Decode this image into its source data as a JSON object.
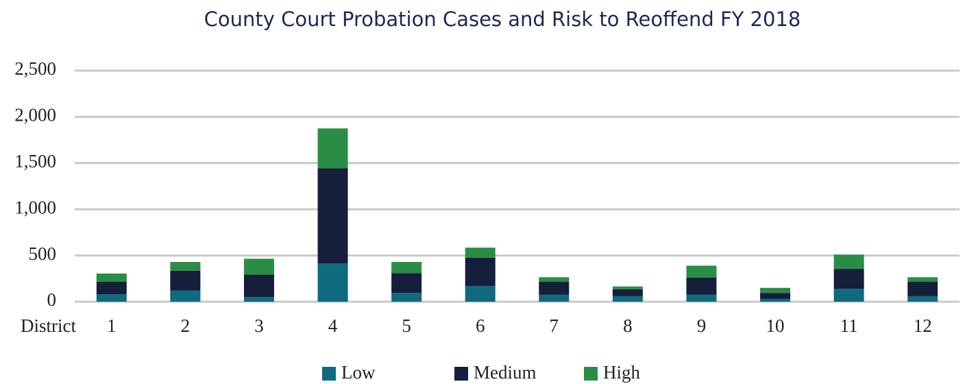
{
  "chart_data": {
    "type": "stacked_bar",
    "title": "County Court Probation Cases and Risk to Reoffend FY 2018",
    "x_label": "District",
    "categories": [
      "1",
      "2",
      "3",
      "4",
      "5",
      "6",
      "7",
      "8",
      "9",
      "10",
      "11",
      "12"
    ],
    "series": [
      {
        "name": "Low",
        "color": "#0f6a80",
        "values": [
          80,
          120,
          50,
          415,
          95,
          170,
          75,
          60,
          75,
          30,
          140,
          60
        ]
      },
      {
        "name": "Medium",
        "color": "#151e3a",
        "values": [
          135,
          215,
          245,
          1030,
          215,
          305,
          140,
          75,
          185,
          65,
          215,
          155
        ]
      },
      {
        "name": "High",
        "color": "#2b8d45",
        "values": [
          90,
          95,
          170,
          430,
          120,
          110,
          50,
          30,
          130,
          55,
          155,
          50
        ]
      }
    ],
    "ylim": [
      0,
      2500
    ],
    "yticks": [
      0,
      500,
      {
        "value": 1000,
        "label": "1,000"
      },
      {
        "value": 1500,
        "label": "1,500"
      },
      {
        "value": 2000,
        "label": "2,000"
      },
      {
        "value": 2500,
        "label": "2,500"
      }
    ],
    "grid": true,
    "legend": "bottom"
  }
}
